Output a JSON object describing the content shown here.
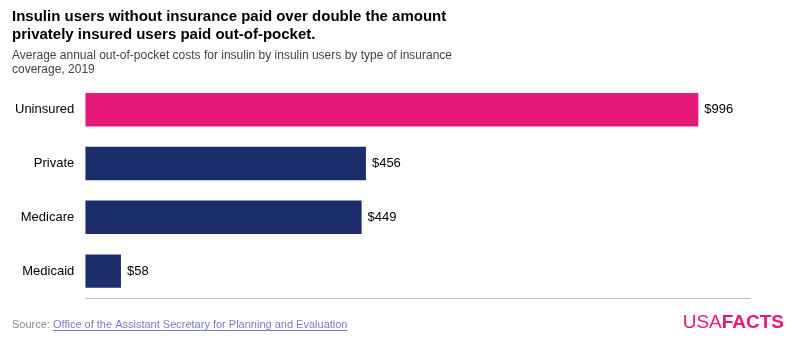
{
  "chart_data": {
    "type": "bar",
    "orientation": "horizontal",
    "title": [
      "Insulin users without insurance paid over double the amount",
      "privately insured users paid out-of-pocket."
    ],
    "subtitle": [
      "Average annual out-of-pocket costs for insulin by insulin users by type of insurance",
      "coverage, 2019"
    ],
    "categories": [
      "Uninsured",
      "Private",
      "Medicare",
      "Medicaid"
    ],
    "values": [
      996,
      456,
      449,
      58
    ],
    "value_labels": [
      "$996",
      "$456",
      "$449",
      "$58"
    ],
    "data_labels": true,
    "colors": [
      "#E8187A",
      "#1B2D6B",
      "#1B2D6B",
      "#1B2D6B"
    ],
    "xlim": [
      0,
      1080
    ],
    "grid": false,
    "tick_labels": "y",
    "annotations": [
      {
        "text": "Source: ",
        "color": "#888888"
      },
      {
        "text": "Office of the Assistant Secretary for Planning and Evaluation",
        "color": "#7B7BC8"
      },
      {
        "text": "USA",
        "color": "#E8187A"
      },
      {
        "text": "FACTS",
        "color": "#E8187A"
      }
    ]
  }
}
